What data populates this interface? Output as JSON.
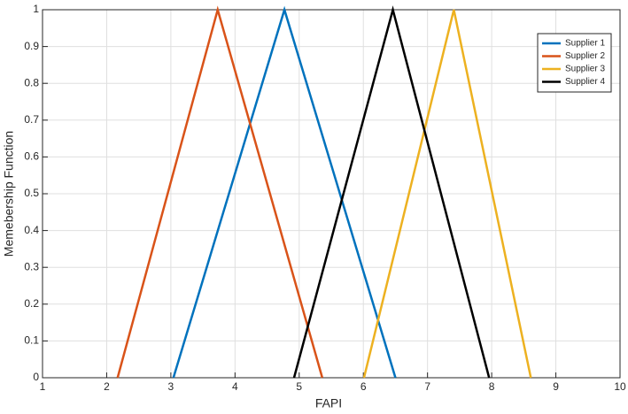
{
  "chart_data": {
    "type": "line",
    "xlabel": "FAPI",
    "ylabel": "Memebership Function",
    "series": [
      {
        "name": "Supplier 1",
        "color": "#0072bd",
        "x": [
          3.04,
          4.77,
          6.5
        ],
        "values": [
          0,
          1,
          0
        ]
      },
      {
        "name": "Supplier 2",
        "color": "#d95319",
        "x": [
          2.17,
          3.73,
          5.36
        ],
        "values": [
          0,
          1,
          0
        ]
      },
      {
        "name": "Supplier 3",
        "color": "#edb120",
        "x": [
          6.01,
          7.41,
          8.61
        ],
        "values": [
          0,
          1,
          0
        ]
      },
      {
        "name": "Supplier 4",
        "color": "#000000",
        "x": [
          4.92,
          6.46,
          7.96
        ],
        "values": [
          0,
          1,
          0
        ]
      }
    ],
    "xlim": [
      1,
      10
    ],
    "xticks": [
      1,
      2,
      3,
      4,
      5,
      6,
      7,
      8,
      9,
      10
    ],
    "ylim": [
      0,
      1
    ],
    "yticks": [
      0,
      0.1,
      0.2,
      0.3,
      0.4,
      0.5,
      0.6,
      0.7,
      0.8,
      0.9,
      1
    ],
    "grid": true,
    "legend": "northeast"
  }
}
